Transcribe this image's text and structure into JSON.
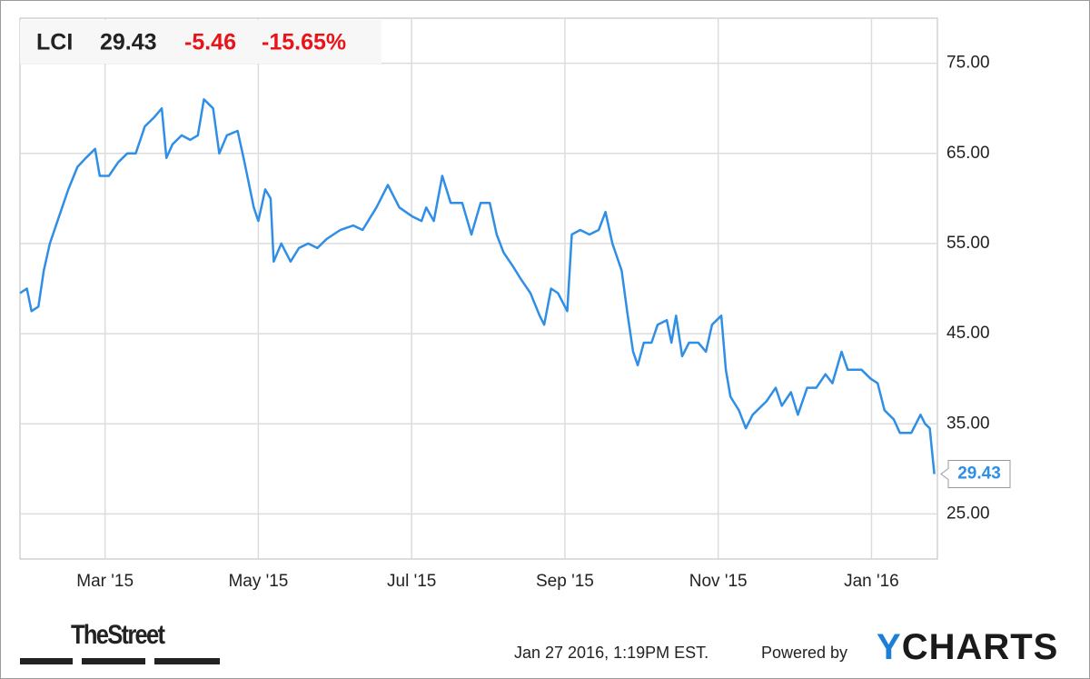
{
  "chart_data": {
    "type": "line",
    "ticker": "LCI",
    "price": "29.43",
    "change": "-5.46",
    "change_pct": "-15.65%",
    "color": "#2f8ee5",
    "x": [
      1.89,
      1.98,
      2.04,
      2.13,
      2.2,
      2.28,
      2.4,
      2.52,
      2.64,
      2.75,
      2.87,
      2.93,
      3.05,
      3.17,
      3.29,
      3.4,
      3.52,
      3.64,
      3.74,
      3.8,
      3.88,
      4.0,
      4.11,
      4.21,
      4.29,
      4.41,
      4.49,
      4.59,
      4.73,
      4.82,
      4.94,
      5.0,
      5.09,
      5.16,
      5.2,
      5.3,
      5.42,
      5.53,
      5.65,
      5.77,
      5.89,
      6.07,
      6.24,
      6.36,
      6.54,
      6.69,
      6.84,
      7.01,
      7.13,
      7.19,
      7.29,
      7.4,
      7.51,
      7.66,
      7.78,
      7.9,
      8.02,
      8.11,
      8.2,
      8.32,
      8.43,
      8.55,
      8.67,
      8.73,
      8.82,
      8.91,
      9.03,
      9.09,
      9.2,
      9.32,
      9.44,
      9.53,
      9.62,
      9.74,
      9.82,
      9.89,
      9.95,
      10.03,
      10.13,
      10.21,
      10.33,
      10.39,
      10.45,
      10.53,
      10.62,
      10.74,
      10.84,
      10.92,
      11.04,
      11.1,
      11.16,
      11.27,
      11.36,
      11.45,
      11.63,
      11.75,
      11.83,
      11.95,
      12.04,
      12.16,
      12.28,
      12.4,
      12.49,
      12.61,
      12.69,
      12.87,
      12.99,
      13.08,
      13.17,
      13.29,
      13.37,
      13.52,
      13.64,
      13.7,
      13.76,
      13.82
    ],
    "values": [
      49.5,
      50,
      47.5,
      48,
      52,
      55,
      58,
      61,
      63.5,
      64.5,
      65.5,
      62.5,
      62.5,
      64,
      65,
      65,
      68,
      69,
      70,
      64.5,
      66,
      67,
      66.5,
      67,
      71,
      70,
      65,
      67,
      67.5,
      64,
      59,
      57.5,
      61,
      60,
      53,
      55,
      53,
      54.5,
      55,
      54.5,
      55.5,
      56.5,
      57,
      56.5,
      59,
      61.5,
      59,
      58,
      57.5,
      59,
      57.5,
      62.5,
      59.5,
      59.5,
      56,
      59.5,
      59.5,
      56,
      54,
      52.5,
      51,
      49.5,
      47,
      46,
      50,
      49.5,
      47.5,
      56,
      56.5,
      56,
      56.5,
      58.5,
      55,
      52,
      47,
      43,
      41.5,
      44,
      44,
      46,
      46.5,
      44,
      47,
      42.5,
      44,
      44,
      43,
      46,
      47,
      41,
      38,
      36.5,
      34.5,
      36,
      37.5,
      39,
      37,
      38.5,
      36,
      39,
      39,
      40.5,
      39.5,
      43,
      41,
      41,
      40,
      39.5,
      36.5,
      35.5,
      34,
      34,
      36,
      35,
      34.5,
      29.43
    ],
    "xlim": [
      1.89,
      13.86
    ],
    "xticks": [
      {
        "value": 3,
        "label": "Mar '15"
      },
      {
        "value": 5,
        "label": "May '15"
      },
      {
        "value": 7,
        "label": "Jul '15"
      },
      {
        "value": 9,
        "label": "Sep '15"
      },
      {
        "value": 11,
        "label": "Nov '15"
      },
      {
        "value": 13,
        "label": "Jan '16"
      }
    ],
    "ylim": [
      20,
      80
    ],
    "yticks": [
      {
        "value": 25,
        "label": "25.00"
      },
      {
        "value": 35,
        "label": "35.00"
      },
      {
        "value": 45,
        "label": "45.00"
      },
      {
        "value": 55,
        "label": "55.00"
      },
      {
        "value": 65,
        "label": "65.00"
      },
      {
        "value": 75,
        "label": "75.00"
      }
    ],
    "grid": true,
    "source": "TheStreet",
    "timestamp": "Jan 27 2016, 1:19PM EST.",
    "powered_by": "Powered by",
    "logo": "YCHARTS"
  }
}
